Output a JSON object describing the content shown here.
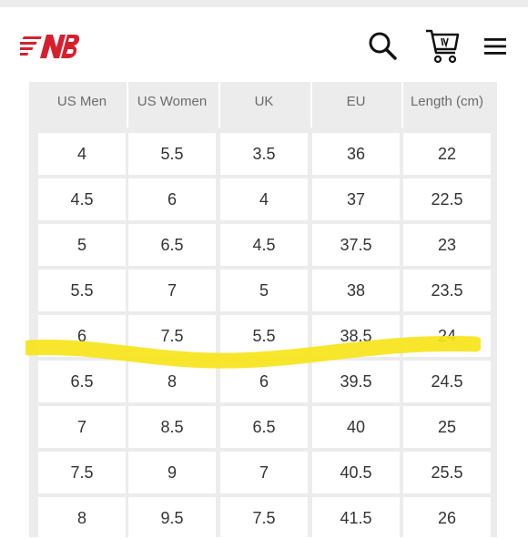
{
  "header": {
    "logo_icon": "new-balance-logo",
    "search_icon": "search-icon",
    "cart_icon": "cart-icon",
    "menu_icon": "hamburger-menu-icon",
    "brand_color": "#d6202e"
  },
  "size_chart": {
    "columns": [
      "US Men",
      "US Women",
      "UK",
      "EU",
      "Length (cm)"
    ],
    "rows": [
      [
        "4",
        "5.5",
        "3.5",
        "36",
        "22"
      ],
      [
        "4.5",
        "6",
        "4",
        "37",
        "22.5"
      ],
      [
        "5",
        "6.5",
        "4.5",
        "37.5",
        "23"
      ],
      [
        "5.5",
        "7",
        "5",
        "38",
        "23.5"
      ],
      [
        "6",
        "7.5",
        "5.5",
        "38.5",
        "24"
      ],
      [
        "6.5",
        "8",
        "6",
        "39.5",
        "24.5"
      ],
      [
        "7",
        "8.5",
        "6.5",
        "40",
        "25"
      ],
      [
        "7.5",
        "9",
        "7",
        "40.5",
        "25.5"
      ],
      [
        "8",
        "9.5",
        "7.5",
        "41.5",
        "26"
      ]
    ],
    "highlighted_row": 4,
    "highlight_color": "#f7e41b"
  }
}
